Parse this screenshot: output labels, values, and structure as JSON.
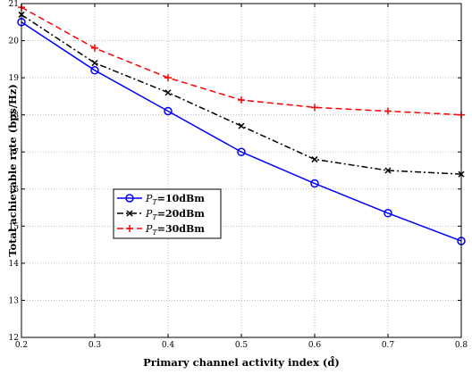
{
  "chart_data": {
    "type": "line",
    "xlabel": "Primary channel activity index (d̂)",
    "ylabel": "Total achievable rate (bps/Hz)",
    "xlim": [
      0.2,
      0.8
    ],
    "ylim": [
      12,
      21
    ],
    "x": [
      0.2,
      0.3,
      0.4,
      0.5,
      0.6,
      0.7,
      0.8
    ],
    "x_ticks": [
      "0.2",
      "0.3",
      "0.4",
      "0.5",
      "0.6",
      "0.7",
      "0.8"
    ],
    "y_ticks": [
      "12",
      "13",
      "14",
      "15",
      "16",
      "17",
      "18",
      "19",
      "20",
      "21"
    ],
    "grid": true,
    "legend_position": "middle-left",
    "series": [
      {
        "name_sym": "P",
        "name_sub": "T",
        "name_rest": "=10dBm",
        "values": [
          20.5,
          19.2,
          18.1,
          17.0,
          16.15,
          15.35,
          14.6
        ],
        "color": "#0000ff",
        "style": "solid",
        "marker": "circle"
      },
      {
        "name_sym": "P",
        "name_sub": "T",
        "name_rest": "=20dBm",
        "values": [
          20.7,
          19.4,
          18.6,
          17.7,
          16.8,
          16.5,
          16.4
        ],
        "color": "#000000",
        "style": "dashdot",
        "marker": "x"
      },
      {
        "name_sym": "P",
        "name_sub": "T",
        "name_rest": "=30dBm",
        "values": [
          20.9,
          19.8,
          19.0,
          18.4,
          18.2,
          18.1,
          18.0
        ],
        "color": "#ff0000",
        "style": "dashed",
        "marker": "plus"
      }
    ]
  }
}
